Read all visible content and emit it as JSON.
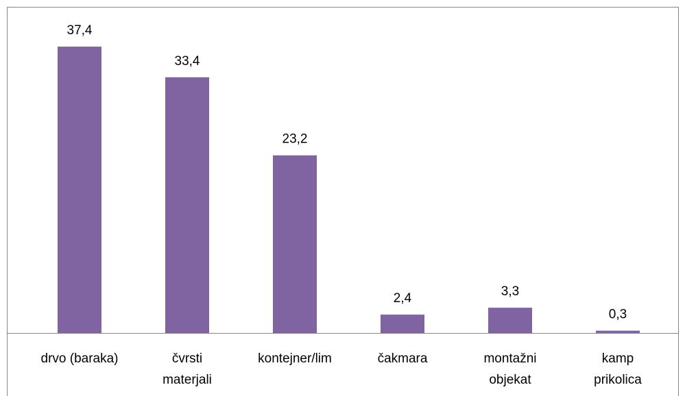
{
  "chart_data": {
    "type": "bar",
    "categories": [
      "drvo (baraka)",
      "čvrsti materjali",
      "kontejner/lim",
      "čakmara",
      "montažni objekat",
      "kamp prikolica"
    ],
    "values": [
      37.4,
      33.4,
      23.2,
      2.4,
      3.3,
      0.3
    ],
    "value_labels": [
      "37,4",
      "33,4",
      "23,2",
      "2,4",
      "3,3",
      "0,3"
    ],
    "color": "#8064a2",
    "ylim": [
      0,
      40
    ]
  }
}
